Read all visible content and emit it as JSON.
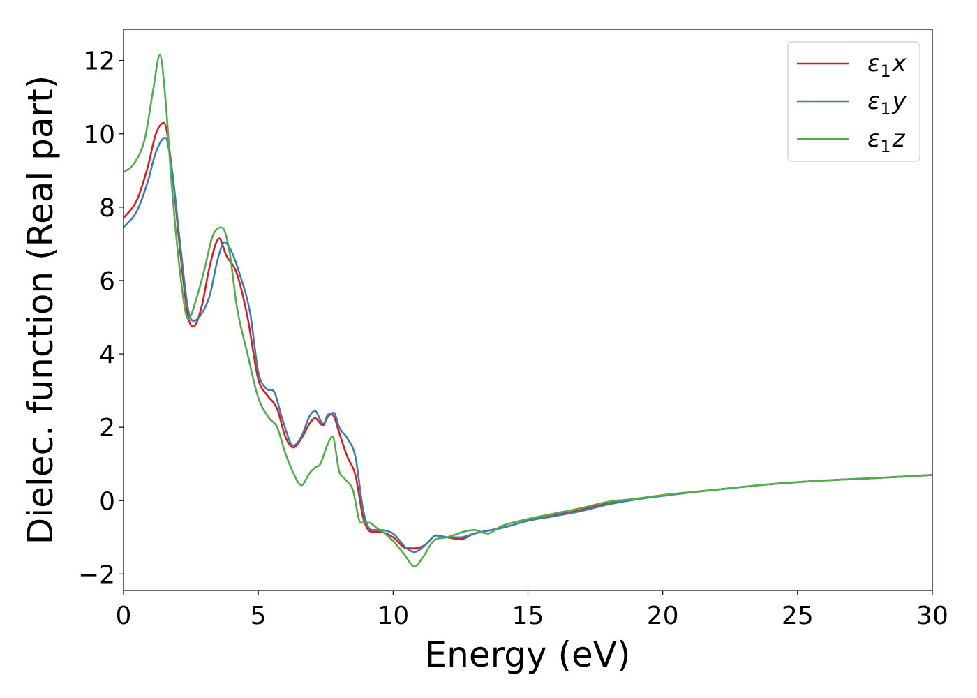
{
  "chart_data": {
    "type": "line",
    "xlabel": "Energy (eV)",
    "ylabel": "Dielec. function (Real part)",
    "xlim": [
      0,
      30
    ],
    "ylim": [
      -2.45,
      12.85
    ],
    "xticks": [
      0,
      5,
      10,
      15,
      20,
      25,
      30
    ],
    "yticks": [
      -2,
      0,
      2,
      4,
      6,
      8,
      10,
      12
    ],
    "xtick_labels": [
      "0",
      "5",
      "10",
      "15",
      "20",
      "25",
      "30"
    ],
    "ytick_labels": [
      "−2",
      "0",
      "2",
      "4",
      "6",
      "8",
      "10",
      "12"
    ],
    "grid": false,
    "legend_position": "top-right",
    "series": [
      {
        "name": "ε₁x",
        "legend_base": "ε",
        "legend_sub": "1",
        "legend_tail": "x",
        "color": "#e41a1c",
        "x": [
          0,
          0.5,
          0.9,
          1.2,
          1.5,
          1.8,
          2.1,
          2.4,
          2.6,
          2.9,
          3.2,
          3.55,
          3.8,
          4.2,
          4.6,
          5.0,
          5.3,
          5.7,
          6.0,
          6.3,
          6.6,
          6.9,
          7.1,
          7.4,
          7.6,
          7.8,
          8.0,
          8.3,
          8.6,
          8.9,
          9.2,
          9.5,
          10.0,
          10.5,
          10.8,
          11.2,
          11.6,
          12.0,
          12.5,
          13.0,
          14.0,
          15.0,
          16.0,
          17.0,
          18.0,
          19.0,
          20.0,
          22.0,
          24.0,
          26.0,
          28.0,
          30.0
        ],
        "y": [
          7.7,
          8.2,
          9.1,
          10.0,
          10.3,
          9.0,
          6.8,
          5.0,
          4.75,
          5.3,
          6.4,
          7.15,
          6.7,
          6.2,
          5.0,
          3.3,
          2.9,
          2.5,
          1.75,
          1.45,
          1.7,
          2.1,
          2.25,
          2.05,
          2.35,
          2.3,
          1.85,
          1.2,
          0.7,
          -0.5,
          -0.85,
          -0.85,
          -1.0,
          -1.3,
          -1.3,
          -1.2,
          -0.95,
          -1.0,
          -1.05,
          -0.9,
          -0.75,
          -0.55,
          -0.4,
          -0.25,
          -0.05,
          0.05,
          0.15,
          0.3,
          0.45,
          0.55,
          0.62,
          0.7
        ]
      },
      {
        "name": "ε₁y",
        "legend_base": "ε",
        "legend_sub": "1",
        "legend_tail": "y",
        "color": "#377eb8",
        "x": [
          0,
          0.5,
          0.9,
          1.2,
          1.55,
          1.8,
          2.1,
          2.4,
          2.6,
          2.9,
          3.2,
          3.5,
          3.75,
          4.0,
          4.3,
          4.7,
          5.0,
          5.3,
          5.6,
          5.9,
          6.3,
          6.6,
          6.9,
          7.1,
          7.4,
          7.6,
          7.8,
          8.0,
          8.3,
          8.6,
          8.9,
          9.2,
          9.5,
          10.0,
          10.5,
          10.8,
          11.2,
          11.6,
          12.0,
          12.5,
          13.0,
          14.0,
          15.0,
          16.0,
          17.0,
          18.0,
          19.0,
          20.0,
          22.0,
          24.0,
          26.0,
          28.0,
          30.0
        ],
        "y": [
          7.45,
          7.9,
          8.7,
          9.5,
          9.9,
          9.0,
          7.0,
          5.2,
          4.9,
          5.1,
          5.6,
          6.6,
          7.05,
          6.8,
          6.2,
          5.1,
          3.5,
          3.05,
          2.95,
          2.2,
          1.5,
          1.75,
          2.3,
          2.45,
          2.1,
          2.3,
          2.4,
          2.0,
          1.7,
          1.2,
          -0.3,
          -0.8,
          -0.8,
          -0.9,
          -1.3,
          -1.4,
          -1.2,
          -0.95,
          -1.0,
          -1.0,
          -0.9,
          -0.75,
          -0.55,
          -0.42,
          -0.28,
          -0.1,
          0.03,
          0.13,
          0.3,
          0.45,
          0.55,
          0.62,
          0.7
        ]
      },
      {
        "name": "ε₁z",
        "legend_base": "ε",
        "legend_sub": "1",
        "legend_tail": "z",
        "color": "#4daf4a",
        "x": [
          0,
          0.4,
          0.8,
          1.1,
          1.35,
          1.55,
          1.8,
          2.1,
          2.4,
          2.7,
          3.0,
          3.3,
          3.6,
          3.75,
          3.95,
          4.2,
          4.6,
          5.0,
          5.4,
          5.7,
          6.0,
          6.3,
          6.6,
          6.9,
          7.1,
          7.3,
          7.55,
          7.75,
          8.0,
          8.2,
          8.5,
          8.8,
          9.1,
          9.4,
          9.7,
          10.0,
          10.4,
          10.8,
          11.1,
          11.5,
          12.0,
          13.0,
          13.5,
          14.0,
          15.0,
          16.0,
          17.0,
          18.0,
          19.0,
          20.0,
          22.0,
          24.0,
          26.0,
          28.0,
          30.0
        ],
        "y": [
          8.95,
          9.2,
          9.9,
          11.2,
          12.15,
          11.0,
          8.5,
          6.2,
          4.95,
          5.5,
          6.3,
          7.2,
          7.45,
          7.35,
          6.7,
          5.3,
          4.0,
          2.8,
          2.25,
          2.0,
          1.3,
          0.75,
          0.42,
          0.75,
          0.9,
          1.0,
          1.5,
          1.75,
          0.8,
          0.6,
          0.3,
          -0.6,
          -0.6,
          -0.75,
          -0.9,
          -1.1,
          -1.45,
          -1.8,
          -1.55,
          -1.1,
          -1.0,
          -0.8,
          -0.9,
          -0.7,
          -0.5,
          -0.35,
          -0.2,
          -0.03,
          0.05,
          0.15,
          0.3,
          0.45,
          0.55,
          0.62,
          0.7
        ]
      }
    ]
  }
}
